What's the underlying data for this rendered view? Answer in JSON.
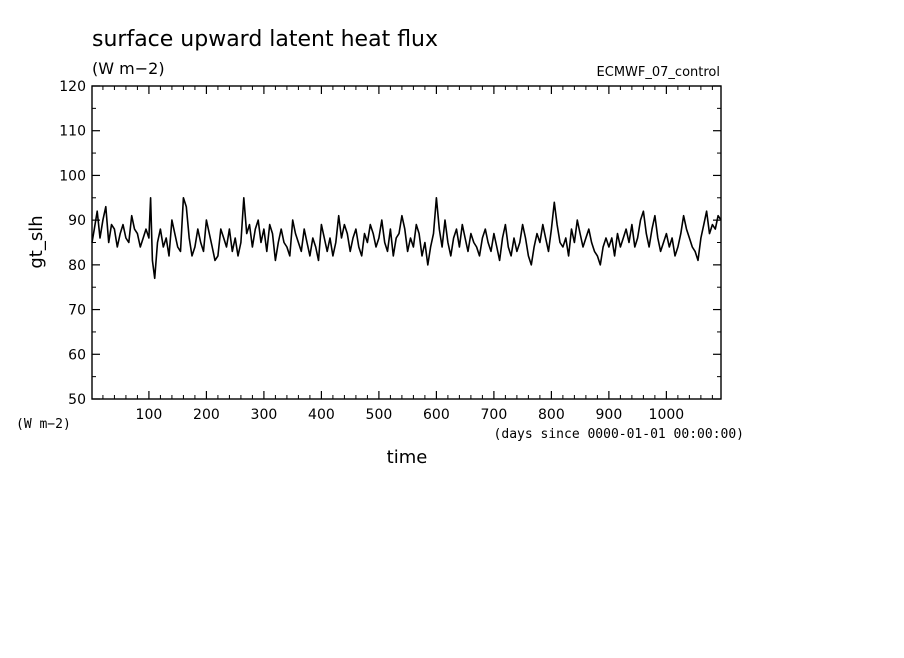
{
  "chart_data": {
    "type": "line",
    "title": "surface upward latent heat flux",
    "subtitle": "(W m−2)",
    "dataset_label": "ECMWF_07_control",
    "xlabel": "time",
    "x_units": "(days since 0000-01-01 00:00:00)",
    "ylabel": "gt_slh",
    "y_units": "(W m−2)",
    "xlim": [
      1,
      1095
    ],
    "ylim": [
      50,
      120
    ],
    "x_ticks": [
      100,
      200,
      300,
      400,
      500,
      600,
      700,
      800,
      900,
      1000
    ],
    "y_ticks": [
      50,
      60,
      70,
      80,
      90,
      100,
      110,
      120
    ],
    "grid": false,
    "series": [
      {
        "x": [
          1,
          5,
          10,
          15,
          20,
          25,
          30,
          35,
          40,
          45,
          50,
          55,
          60,
          65,
          70,
          75,
          80,
          85,
          90,
          95,
          100,
          103,
          106,
          110,
          115,
          120,
          125,
          130,
          135,
          140,
          145,
          150,
          155,
          160,
          165,
          170,
          175,
          180,
          185,
          190,
          195,
          200,
          205,
          210,
          215,
          220,
          225,
          230,
          235,
          240,
          245,
          250,
          255,
          260,
          265,
          270,
          275,
          280,
          285,
          290,
          295,
          300,
          305,
          310,
          315,
          320,
          325,
          330,
          335,
          340,
          345,
          350,
          355,
          360,
          365,
          370,
          375,
          380,
          385,
          390,
          395,
          400,
          405,
          410,
          415,
          420,
          425,
          430,
          435,
          440,
          445,
          450,
          455,
          460,
          465,
          470,
          475,
          480,
          485,
          490,
          495,
          500,
          505,
          510,
          515,
          520,
          525,
          530,
          535,
          540,
          545,
          550,
          555,
          560,
          565,
          570,
          575,
          580,
          585,
          590,
          595,
          600,
          605,
          610,
          615,
          620,
          625,
          630,
          635,
          640,
          645,
          650,
          655,
          660,
          665,
          670,
          675,
          680,
          685,
          690,
          695,
          700,
          705,
          710,
          715,
          720,
          725,
          730,
          735,
          740,
          745,
          750,
          755,
          760,
          765,
          770,
          775,
          780,
          785,
          790,
          795,
          800,
          805,
          810,
          815,
          820,
          825,
          830,
          835,
          840,
          845,
          850,
          855,
          860,
          865,
          870,
          875,
          880,
          885,
          890,
          895,
          900,
          905,
          910,
          915,
          920,
          925,
          930,
          935,
          940,
          945,
          950,
          955,
          960,
          965,
          970,
          975,
          980,
          985,
          990,
          995,
          1000,
          1005,
          1010,
          1015,
          1020,
          1025,
          1030,
          1035,
          1040,
          1045,
          1050,
          1055,
          1060,
          1065,
          1070,
          1075,
          1080,
          1085,
          1090,
          1095
        ],
        "y": [
          85,
          88,
          92,
          86,
          90,
          93,
          85,
          89,
          88,
          84,
          87,
          89,
          86,
          85,
          91,
          88,
          87,
          84,
          86,
          88,
          86,
          95,
          81,
          77,
          85,
          88,
          84,
          86,
          82,
          90,
          87,
          84,
          83,
          95,
          93,
          86,
          82,
          84,
          88,
          85,
          83,
          90,
          87,
          84,
          81,
          82,
          88,
          86,
          84,
          88,
          83,
          86,
          82,
          85,
          95,
          87,
          89,
          84,
          88,
          90,
          85,
          88,
          83,
          89,
          87,
          81,
          85,
          88,
          85,
          84,
          82,
          90,
          87,
          85,
          83,
          88,
          85,
          82,
          86,
          84,
          81,
          89,
          86,
          83,
          86,
          82,
          85,
          91,
          86,
          89,
          87,
          83,
          86,
          88,
          84,
          82,
          87,
          85,
          89,
          87,
          84,
          86,
          90,
          85,
          83,
          88,
          82,
          86,
          87,
          91,
          88,
          83,
          86,
          84,
          89,
          87,
          82,
          85,
          80,
          84,
          87,
          95,
          88,
          84,
          90,
          85,
          82,
          86,
          88,
          84,
          89,
          86,
          83,
          87,
          85,
          84,
          82,
          86,
          88,
          85,
          83,
          87,
          84,
          81,
          86,
          89,
          84,
          82,
          86,
          83,
          85,
          89,
          86,
          82,
          80,
          84,
          87,
          85,
          89,
          86,
          83,
          88,
          94,
          89,
          85,
          84,
          86,
          82,
          88,
          85,
          90,
          87,
          84,
          86,
          88,
          85,
          83,
          82,
          80,
          84,
          86,
          84,
          86,
          82,
          87,
          84,
          86,
          88,
          85,
          89,
          84,
          86,
          90,
          92,
          87,
          84,
          88,
          91,
          86,
          83,
          85,
          87,
          84,
          86,
          82,
          84,
          87,
          91,
          88,
          86,
          84,
          83,
          81,
          86,
          89,
          92,
          87,
          89,
          88,
          91,
          90
        ]
      }
    ]
  }
}
